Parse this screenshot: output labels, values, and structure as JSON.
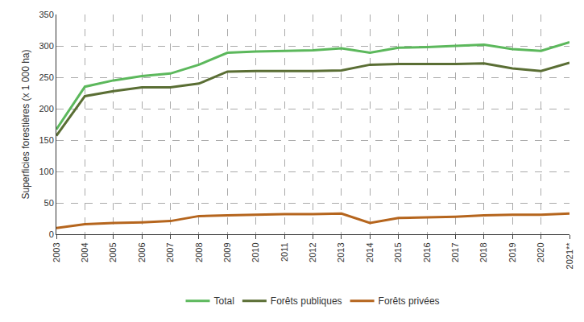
{
  "chart_data": {
    "type": "line",
    "y_label": "Superficies forestières (x 1 000 ha)",
    "categories": [
      "2003",
      "2004",
      "2005",
      "2006",
      "2007",
      "2008",
      "2009",
      "2010",
      "2011",
      "2012",
      "2013",
      "2014",
      "2015",
      "2016",
      "2017",
      "2018",
      "2019",
      "2020",
      "2021**"
    ],
    "series": [
      {
        "name": "Total",
        "color": "#5cb85c",
        "values": [
          167,
          235,
          245,
          252,
          256,
          270,
          289,
          291,
          292,
          293,
          296,
          289,
          297,
          298,
          300,
          302,
          295,
          292,
          306
        ]
      },
      {
        "name": "Forêts publiques",
        "color": "#5a6e34",
        "values": [
          157,
          220,
          228,
          234,
          234,
          240,
          259,
          260,
          260,
          260,
          261,
          270,
          271,
          271,
          271,
          272,
          264,
          260,
          273
        ]
      },
      {
        "name": "Forêts privées",
        "color": "#b5651d",
        "values": [
          10,
          16,
          18,
          19,
          21,
          29,
          30,
          31,
          32,
          32,
          33,
          18,
          26,
          27,
          28,
          30,
          31,
          31,
          33
        ]
      }
    ],
    "ylim": [
      0,
      350
    ],
    "yticks": [
      0,
      50,
      100,
      150,
      200,
      250,
      300,
      350
    ],
    "grid": true,
    "legend": "bottom"
  }
}
